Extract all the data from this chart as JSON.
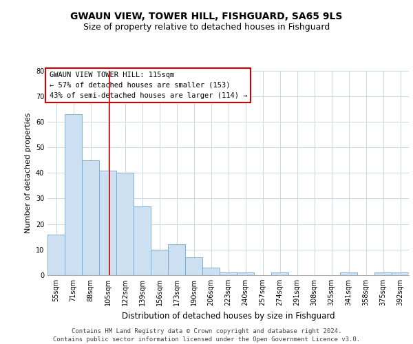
{
  "title": "GWAUN VIEW, TOWER HILL, FISHGUARD, SA65 9LS",
  "subtitle": "Size of property relative to detached houses in Fishguard",
  "xlabel": "Distribution of detached houses by size in Fishguard",
  "ylabel": "Number of detached properties",
  "categories": [
    "55sqm",
    "71sqm",
    "88sqm",
    "105sqm",
    "122sqm",
    "139sqm",
    "156sqm",
    "173sqm",
    "190sqm",
    "206sqm",
    "223sqm",
    "240sqm",
    "257sqm",
    "274sqm",
    "291sqm",
    "308sqm",
    "325sqm",
    "341sqm",
    "358sqm",
    "375sqm",
    "392sqm"
  ],
  "values": [
    16,
    63,
    45,
    41,
    40,
    27,
    10,
    12,
    7,
    3,
    1,
    1,
    0,
    1,
    0,
    0,
    0,
    1,
    0,
    1,
    1
  ],
  "bar_color": "#cde0f2",
  "bar_edge_color": "#6aaad4",
  "grid_color": "#c8d8e8",
  "background_color": "#ffffff",
  "vline_color": "#cc0000",
  "annotation_text": "GWAUN VIEW TOWER HILL: 115sqm\n← 57% of detached houses are smaller (153)\n43% of semi-detached houses are larger (114) →",
  "annotation_box_color": "#ffffff",
  "annotation_box_edge_color": "#cc0000",
  "ylim": [
    0,
    80
  ],
  "yticks": [
    0,
    10,
    20,
    30,
    40,
    50,
    60,
    70,
    80
  ],
  "footer_text": "Contains HM Land Registry data © Crown copyright and database right 2024.\nContains public sector information licensed under the Open Government Licence v3.0.",
  "title_fontsize": 10,
  "subtitle_fontsize": 9,
  "xlabel_fontsize": 8.5,
  "ylabel_fontsize": 8,
  "tick_fontsize": 7,
  "annotation_fontsize": 7.5,
  "footer_fontsize": 6.5
}
